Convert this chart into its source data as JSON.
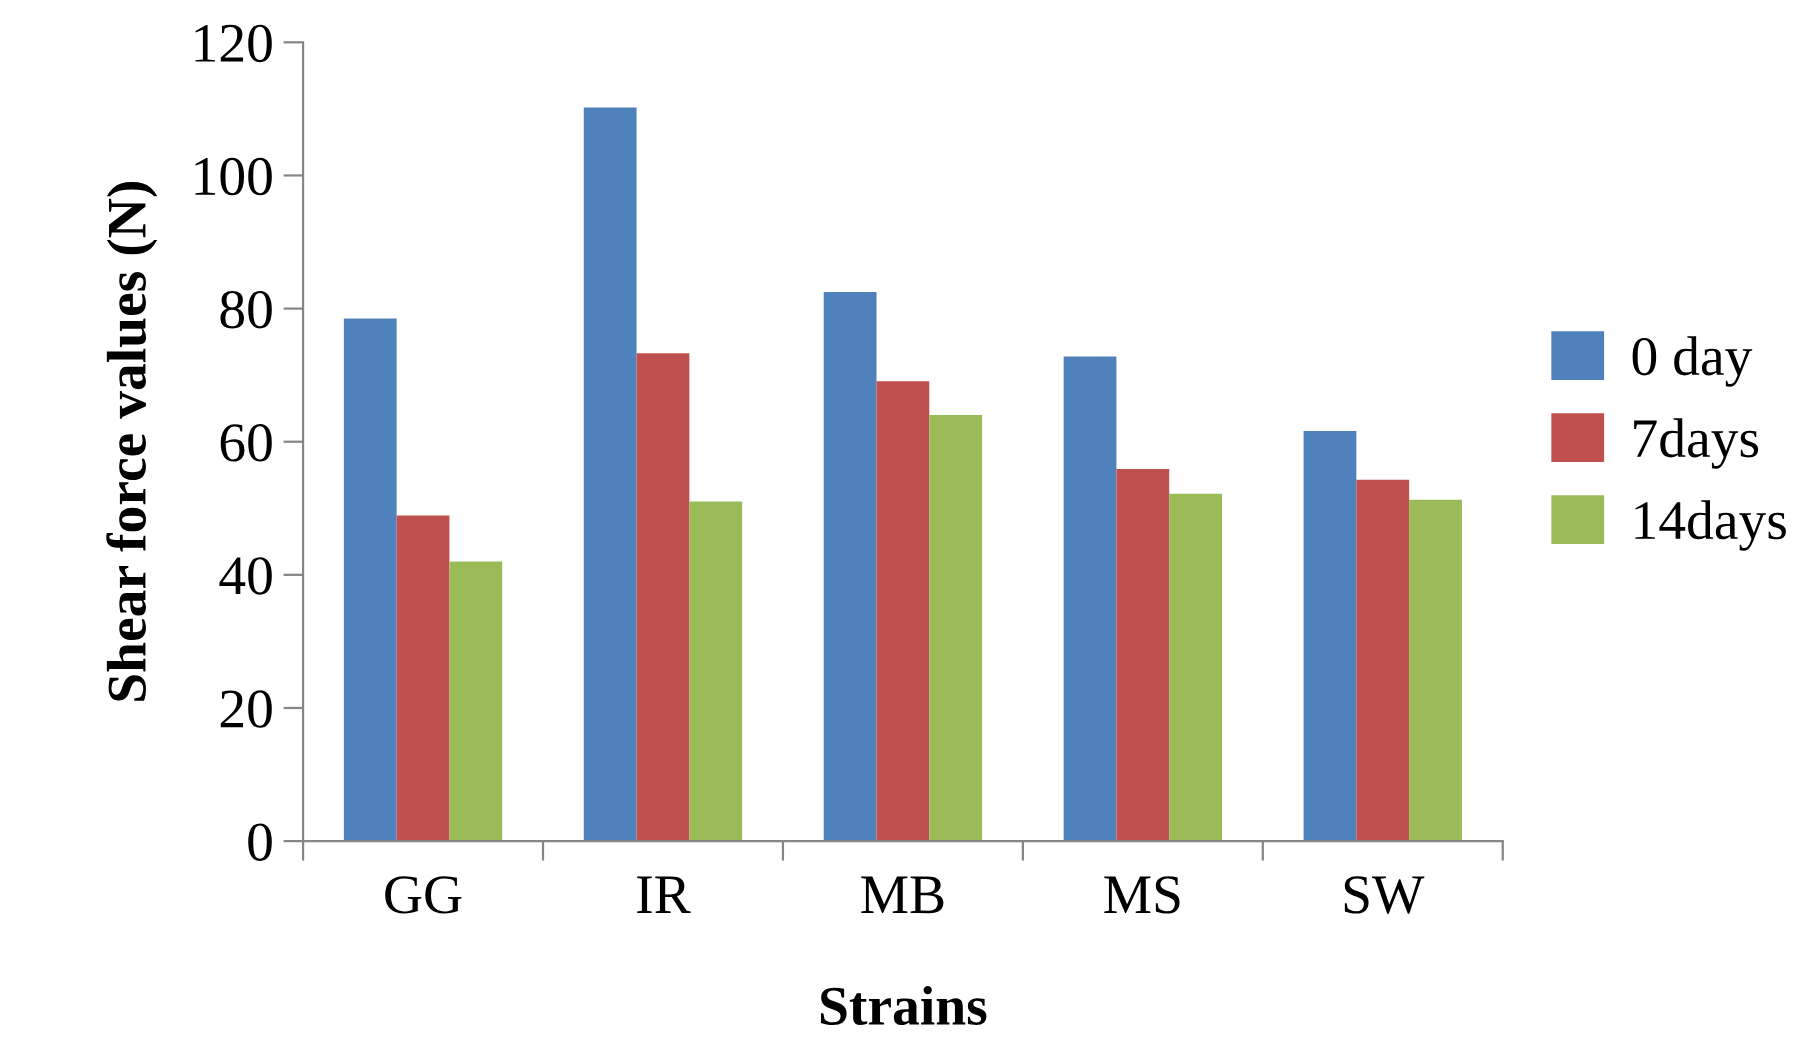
{
  "chart_data": {
    "type": "bar",
    "xlabel": "Strains",
    "ylabel": "Shear force values (N)",
    "categories": [
      "GG",
      "IR",
      "MB",
      "MS",
      "SW"
    ],
    "series": [
      {
        "name": "0 day",
        "color": "#4f81bd",
        "values": [
          78.5,
          110.2,
          82.5,
          72.8,
          61.6
        ]
      },
      {
        "name": "7days",
        "color": "#c0504d",
        "values": [
          48.9,
          73.3,
          69.1,
          55.9,
          54.3
        ]
      },
      {
        "name": "14days",
        "color": "#9bbb59",
        "values": [
          42.0,
          51.0,
          64.0,
          52.2,
          51.3
        ]
      }
    ],
    "ylim": [
      0,
      120
    ],
    "yticks": [
      0,
      20,
      40,
      60,
      80,
      100,
      120
    ],
    "grid": false,
    "legend": "right"
  }
}
